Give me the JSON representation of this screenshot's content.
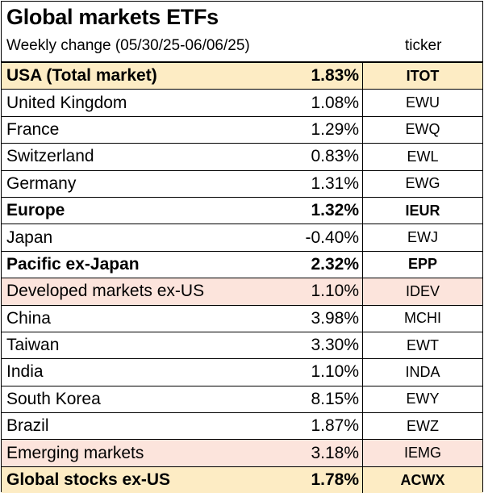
{
  "chart_data": {
    "type": "table",
    "title": "Global markets ETFs",
    "subtitle": "Weekly change (05/30/25-06/06/25)",
    "columns": [
      "",
      "Weekly change",
      "ticker"
    ],
    "ticker_header": "ticker",
    "rows": [
      {
        "name": "USA (Total market)",
        "value": "1.83%",
        "ticker": "ITOT",
        "style": "bold yellow"
      },
      {
        "name": "United Kingdom",
        "value": "1.08%",
        "ticker": "EWU",
        "style": ""
      },
      {
        "name": "France",
        "value": "1.29%",
        "ticker": "EWQ",
        "style": ""
      },
      {
        "name": "Switzerland",
        "value": "0.83%",
        "ticker": "EWL",
        "style": ""
      },
      {
        "name": "Germany",
        "value": "1.31%",
        "ticker": "EWG",
        "style": ""
      },
      {
        "name": "Europe",
        "value": "1.32%",
        "ticker": "IEUR",
        "style": "bold"
      },
      {
        "name": "Japan",
        "value": "-0.40%",
        "ticker": "EWJ",
        "style": ""
      },
      {
        "name": "Pacific ex-Japan",
        "value": "2.32%",
        "ticker": "EPP",
        "style": "bold"
      },
      {
        "name": "Developed markets ex-US",
        "value": "1.10%",
        "ticker": "IDEV",
        "style": "pink"
      },
      {
        "name": "China",
        "value": "3.98%",
        "ticker": "MCHI",
        "style": ""
      },
      {
        "name": "Taiwan",
        "value": "3.30%",
        "ticker": "EWT",
        "style": ""
      },
      {
        "name": "India",
        "value": "1.10%",
        "ticker": "INDA",
        "style": ""
      },
      {
        "name": "South Korea",
        "value": "8.15%",
        "ticker": "EWY",
        "style": ""
      },
      {
        "name": "Brazil",
        "value": "1.87%",
        "ticker": "EWZ",
        "style": ""
      },
      {
        "name": "Emerging markets",
        "value": "3.18%",
        "ticker": "IEMG",
        "style": "pink"
      },
      {
        "name": "Global stocks ex-US",
        "value": "1.78%",
        "ticker": "ACWX",
        "style": "bold yellow"
      }
    ],
    "colors": {
      "highlight_yellow": "#fdecc4",
      "highlight_pink": "#fce4dc"
    }
  }
}
